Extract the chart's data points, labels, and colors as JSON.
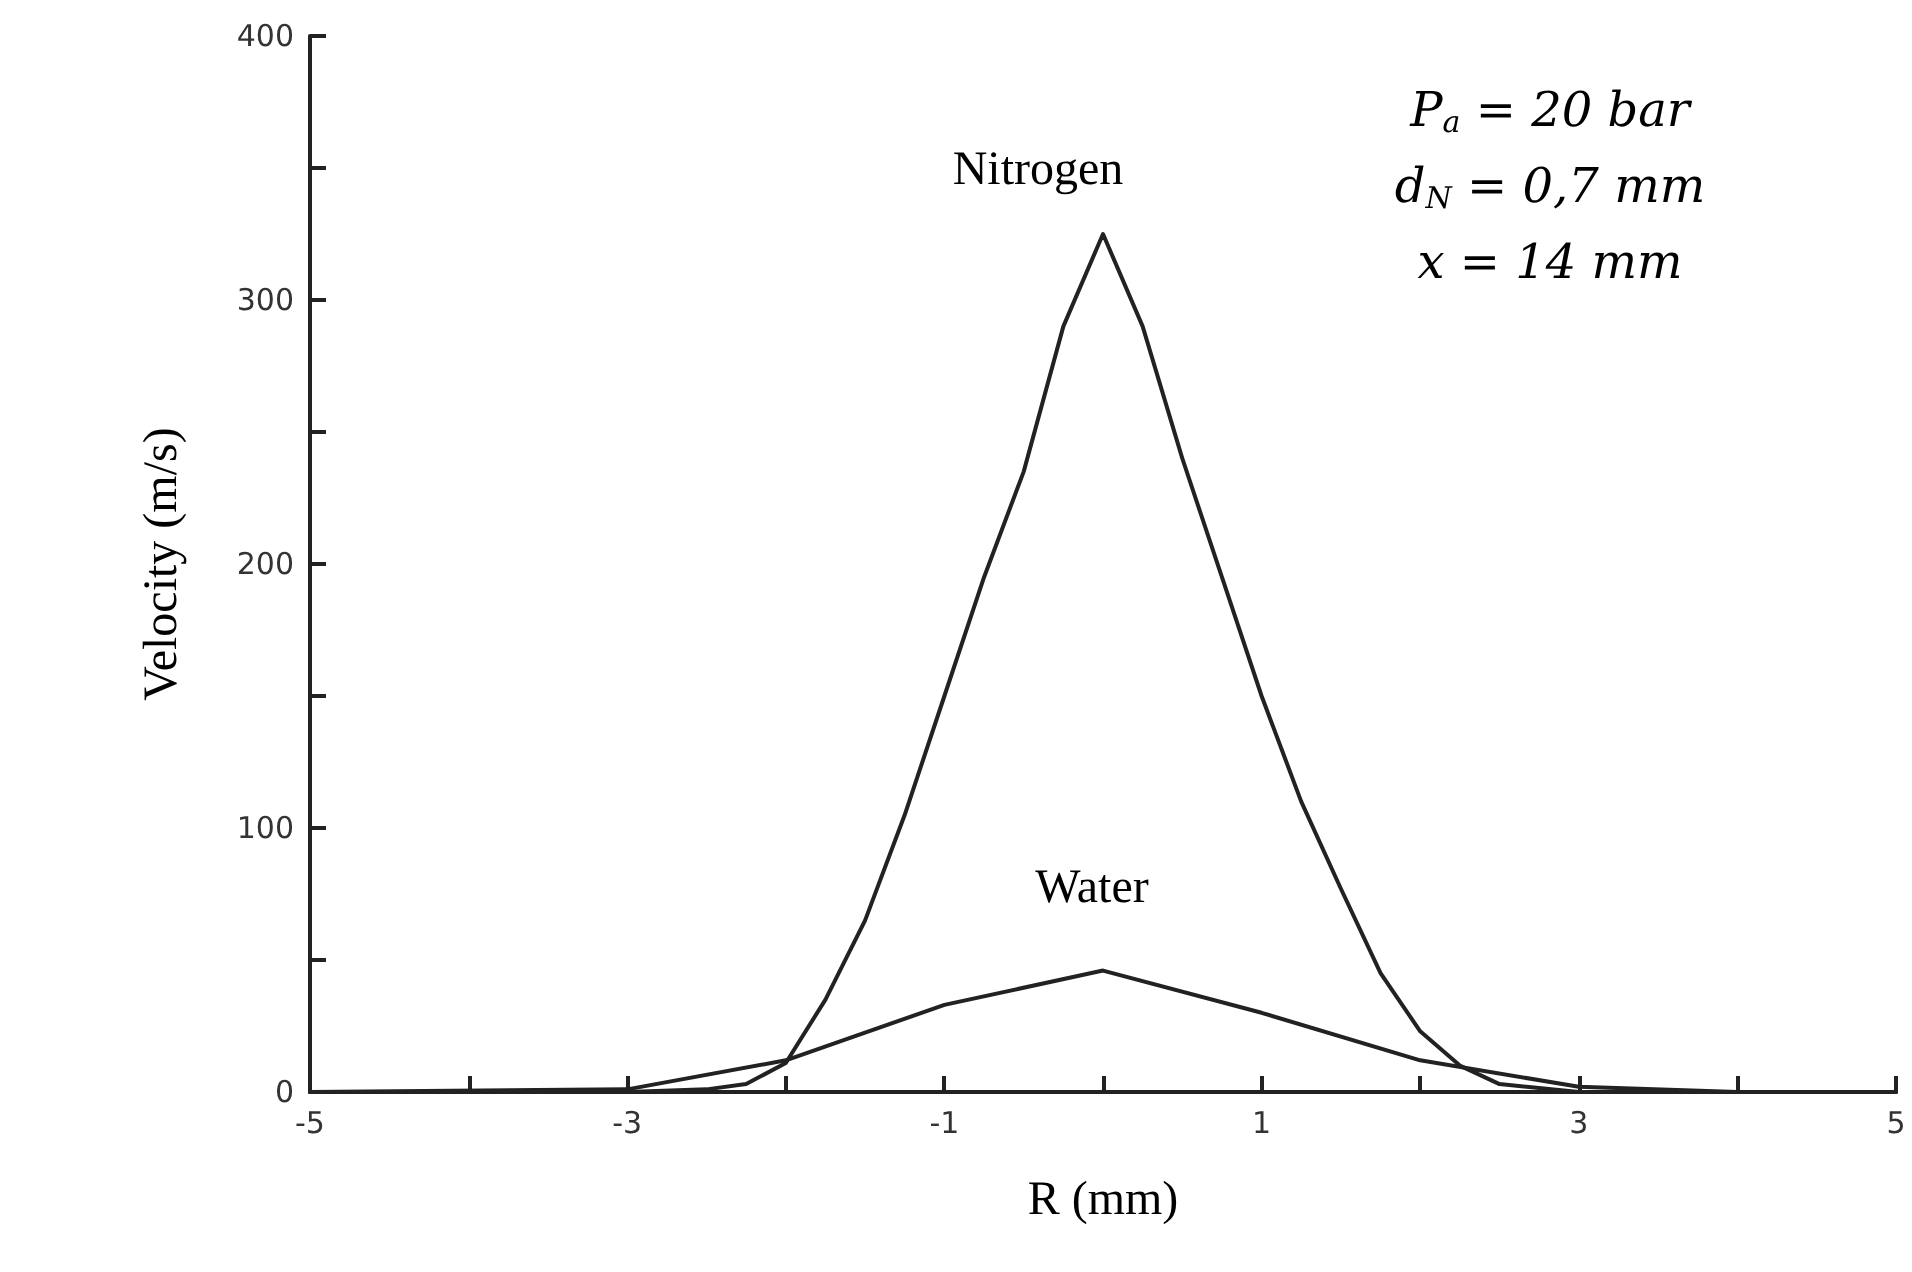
{
  "chart_data": {
    "type": "line",
    "xlabel": "R (mm)",
    "ylabel": "Velocity (m/s)",
    "xlim": [
      -5,
      5
    ],
    "ylim": [
      0,
      400
    ],
    "xticks": [
      -5,
      {
        "value": -4,
        "label": null
      },
      -3,
      {
        "value": -2,
        "label": null
      },
      -1,
      {
        "value": 0,
        "label": null
      },
      1,
      {
        "value": 2,
        "label": null
      },
      3,
      {
        "value": 4,
        "label": null
      },
      5
    ],
    "yticks": [
      0,
      {
        "value": 50,
        "label": null
      },
      100,
      {
        "value": 150,
        "label": null
      },
      200,
      {
        "value": 250,
        "label": null
      },
      300,
      {
        "value": 350,
        "label": null
      },
      400
    ],
    "grid": false,
    "marker": "none",
    "line_style": "solid",
    "series": [
      {
        "color": "#222222",
        "x": [
          -5,
          -3,
          -2.5,
          -2.25,
          -2,
          -1.75,
          -1.5,
          -1.25,
          -1,
          -0.75,
          -0.5,
          -0.25,
          0,
          0.25,
          0.5,
          0.75,
          1,
          1.25,
          1.5,
          1.75,
          2,
          2.25,
          2.5,
          3,
          4,
          5
        ],
        "values": [
          0,
          0,
          1,
          3,
          11,
          35,
          65,
          105,
          150,
          195,
          235,
          290,
          325,
          290,
          240,
          195,
          150,
          110,
          77,
          45,
          23,
          10,
          3,
          0,
          0,
          0
        ]
      },
      {
        "color": "#222222",
        "x": [
          -5,
          -3,
          -2,
          -1,
          0,
          1,
          2,
          3,
          4,
          5
        ],
        "values": [
          0,
          1,
          12,
          33,
          46,
          30,
          12,
          2,
          0,
          0
        ]
      }
    ],
    "annotations": [
      "Nitrogen",
      "Water",
      "P$_{a}$ = 20 bar",
      "d$_{N}$ = 0,7 mm",
      "x = 14 mm"
    ]
  }
}
